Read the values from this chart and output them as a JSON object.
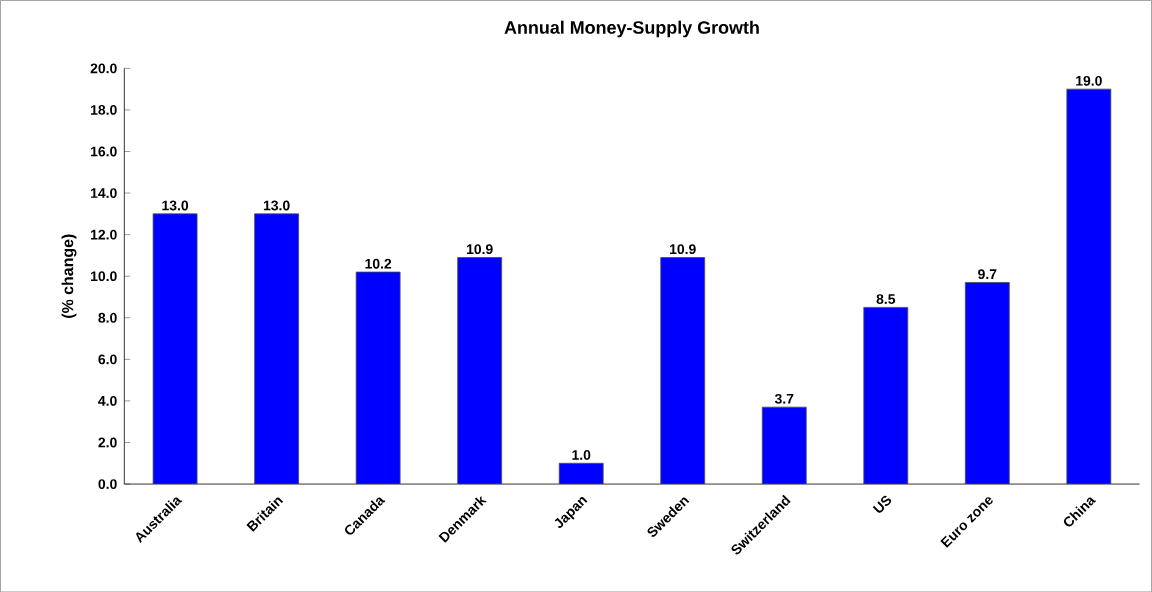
{
  "chart_data": {
    "type": "bar",
    "title": "Annual Money-Supply Growth",
    "ylabel": "(% change)",
    "categories": [
      "Australia",
      "Britain",
      "Canada",
      "Denmark",
      "Japan",
      "Sweden",
      "Switzerland",
      "US",
      "Euro zone",
      "China"
    ],
    "values": [
      13.0,
      13.0,
      10.2,
      10.9,
      1.0,
      10.9,
      3.7,
      8.5,
      9.7,
      19.0
    ],
    "value_labels": [
      "13.0",
      "13.0",
      "10.2",
      "10.9",
      "1.0",
      "10.9",
      "3.7",
      "8.5",
      "9.7",
      "19.0"
    ],
    "color": "#0000ff",
    "ylim": [
      0,
      20
    ],
    "yticks": [
      {
        "value": 0,
        "label": "0.0"
      },
      {
        "value": 2,
        "label": "2.0"
      },
      {
        "value": 4,
        "label": "4.0"
      },
      {
        "value": 6,
        "label": "6.0"
      },
      {
        "value": 8,
        "label": "8.0"
      },
      {
        "value": 10,
        "label": "10.0"
      },
      {
        "value": 12,
        "label": "12.0"
      },
      {
        "value": 14,
        "label": "14.0"
      },
      {
        "value": 16,
        "label": "16.0"
      },
      {
        "value": 18,
        "label": "18.0"
      },
      {
        "value": 20,
        "label": "20.0"
      }
    ],
    "grid": false
  }
}
